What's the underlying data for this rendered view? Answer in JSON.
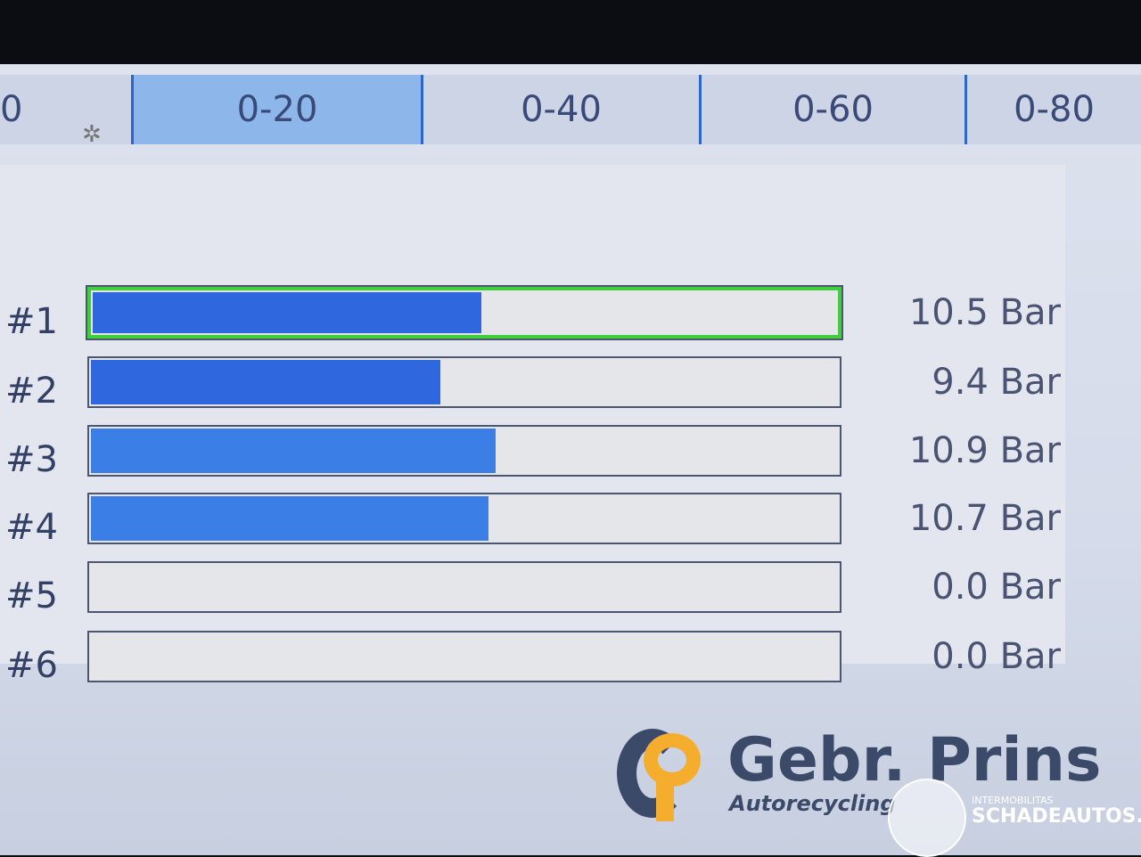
{
  "range_tabs": [
    {
      "label": "0",
      "active": false
    },
    {
      "label": "0-20",
      "active": true
    },
    {
      "label": "0-40",
      "active": false
    },
    {
      "label": "0-60",
      "active": false
    },
    {
      "label": "0-80",
      "active": false
    }
  ],
  "scale_max": 20,
  "cylinders": [
    {
      "label": "#1",
      "value": 10.5,
      "display": "10.5 Bar",
      "selected": true
    },
    {
      "label": "#2",
      "value": 9.4,
      "display": "9.4 Bar",
      "selected": false
    },
    {
      "label": "#3",
      "value": 10.9,
      "display": "10.9 Bar",
      "selected": false
    },
    {
      "label": "#4",
      "value": 10.7,
      "display": "10.7 Bar",
      "selected": false
    },
    {
      "label": "#5",
      "value": 0.0,
      "display": "0.0 Bar",
      "selected": false
    },
    {
      "label": "#6",
      "value": 0.0,
      "display": "0.0 Bar",
      "selected": false
    }
  ],
  "colors": {
    "bar_fill": "#2f68de",
    "selected_border": "#3fcf3a",
    "active_tab": "#8db6ea"
  },
  "watermark": {
    "brand": "Gebr. Prins",
    "tagline": "Autorecycling",
    "small": "INTERMOBILITAS",
    "site": "SCHADEAUTOS.NL"
  }
}
